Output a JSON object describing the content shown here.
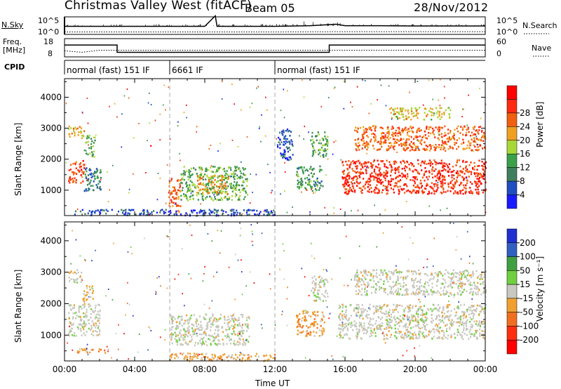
{
  "header": {
    "title": "Christmas Valley West (fitACF)",
    "beam": "Beam 05",
    "date": "28/Nov/2012"
  },
  "colors": {
    "power_scale": [
      "#1a1aff",
      "#1f4fc0",
      "#3f7f5f",
      "#3aa04a",
      "#a8d838",
      "#f0a020",
      "#f06010",
      "#ff2a10",
      "#ff0000"
    ],
    "velocity_scale": [
      "#2030d0",
      "#3060c0",
      "#40a040",
      "#70d040",
      "#c8c8c0",
      "#f0a030",
      "#f07020",
      "#ff3010",
      "#ff0000"
    ],
    "gray_scatter": "#c8c8c0"
  },
  "chart_data": [
    {
      "type": "line",
      "name": "noise-panel",
      "y_left_label": "N.Sky",
      "y_left_ticks": [
        "10^5",
        "10^0"
      ],
      "y_right_ticks": [
        "10^5",
        "10^0"
      ],
      "legend": "N.Search",
      "series": [
        {
          "name": "N.Sky",
          "x": [
            0,
            2,
            4,
            6,
            8,
            8.6,
            8.7,
            10,
            12,
            14,
            15.5,
            16,
            18,
            20,
            22,
            24
          ],
          "y": [
            200,
            200,
            200,
            200,
            200,
            200000,
            200,
            200,
            200,
            300,
            800,
            300,
            300,
            250,
            250,
            250
          ]
        },
        {
          "name": "N.Search",
          "x": [
            0,
            4,
            8,
            12,
            16,
            20,
            24
          ],
          "y": [
            5,
            5,
            5,
            5,
            6,
            6,
            6
          ]
        }
      ]
    },
    {
      "type": "line",
      "name": "frequency-panel",
      "y_left_label": "Freq.\n[MHz]",
      "y_left_ticks": [
        "18",
        "8"
      ],
      "y_right_ticks": [
        "60",
        "0"
      ],
      "legend": "Nave",
      "series": [
        {
          "name": "Freq",
          "x": [
            0,
            3,
            3,
            15.1,
            15.1,
            24
          ],
          "y": [
            14.5,
            14.5,
            10.5,
            10.5,
            14.5,
            14.5
          ]
        },
        {
          "name": "Nave",
          "x": [
            0,
            1,
            2,
            24
          ],
          "y": [
            20,
            15,
            22,
            22
          ]
        }
      ]
    },
    {
      "type": "table",
      "name": "cpid-strip",
      "label": "CPID",
      "segments": [
        {
          "start": 0,
          "end": 6,
          "text": "normal (fast) 151 IF"
        },
        {
          "start": 6,
          "end": 12,
          "text": "6661 IF"
        },
        {
          "start": 12,
          "end": 24,
          "text": "normal (fast) 151 IF"
        }
      ]
    },
    {
      "type": "heatmap",
      "name": "power-panel",
      "ylabel": "Slant Range [km]",
      "xlim": [
        0,
        24
      ],
      "ylim": [
        180,
        4600
      ],
      "y_ticks": [
        1000,
        2000,
        3000,
        4000
      ],
      "colorbar": {
        "label": "Power [dB]",
        "ticks": [
          4,
          8,
          12,
          16,
          20,
          24,
          28
        ],
        "range": [
          0,
          32
        ]
      },
      "regions": [
        {
          "t0": 0.2,
          "t1": 1.1,
          "r0": 1250,
          "r1": 2000,
          "level": 28
        },
        {
          "t0": 0.2,
          "t1": 1.1,
          "r0": 2700,
          "r1": 3100,
          "level": 22
        },
        {
          "t0": 1.1,
          "t1": 1.7,
          "r0": 2100,
          "r1": 2800,
          "level": 14
        },
        {
          "t0": 1.1,
          "t1": 2.1,
          "r0": 1000,
          "r1": 1800,
          "level": 10
        },
        {
          "t0": 5.9,
          "t1": 6.6,
          "r0": 300,
          "r1": 1400,
          "level": 26
        },
        {
          "t0": 6.6,
          "t1": 10.4,
          "r0": 700,
          "r1": 1800,
          "level": 15
        },
        {
          "t0": 7.5,
          "t1": 9.4,
          "r0": 900,
          "r1": 1500,
          "level": 22
        },
        {
          "t0": 0.5,
          "t1": 12,
          "r0": 200,
          "r1": 400,
          "level": 6
        },
        {
          "t0": 12.1,
          "t1": 13,
          "r0": 2000,
          "r1": 3000,
          "level": 6
        },
        {
          "t0": 13.2,
          "t1": 14.7,
          "r0": 1000,
          "r1": 1800,
          "level": 12
        },
        {
          "t0": 14,
          "t1": 15,
          "r0": 2100,
          "r1": 2900,
          "level": 14
        },
        {
          "t0": 15.8,
          "t1": 24,
          "r0": 900,
          "r1": 2000,
          "level": 30
        },
        {
          "t0": 16.5,
          "t1": 24,
          "r0": 2300,
          "r1": 3100,
          "level": 26
        },
        {
          "t0": 18.5,
          "t1": 22,
          "r0": 3300,
          "r1": 3700,
          "level": 20
        }
      ]
    },
    {
      "type": "heatmap",
      "name": "velocity-panel",
      "ylabel": "Slant Range [km]",
      "xlabel": "Time UT",
      "xlim": [
        0,
        24
      ],
      "ylim": [
        180,
        4600
      ],
      "y_ticks": [
        1000,
        2000,
        3000,
        4000
      ],
      "x_ticks": [
        "00:00",
        "04:00",
        "08:00",
        "12:00",
        "16:00",
        "20:00",
        "00:00"
      ],
      "colorbar": {
        "label": "Velocity [m s⁻¹]",
        "ticks": [
          200,
          100,
          50,
          15,
          -15,
          -50,
          -100,
          -200
        ],
        "range": [
          -250,
          250
        ]
      },
      "regions": [
        {
          "t0": 0.2,
          "t1": 2.0,
          "r0": 1000,
          "r1": 2000,
          "level": -5
        },
        {
          "t0": 0.2,
          "t1": 1.0,
          "r0": 2700,
          "r1": 3100,
          "level": -5
        },
        {
          "t0": 1.0,
          "t1": 1.6,
          "r0": 2000,
          "r1": 2600,
          "level": -40
        },
        {
          "t0": 0.5,
          "t1": 2.5,
          "r0": 450,
          "r1": 600,
          "level": -60
        },
        {
          "t0": 6.0,
          "t1": 10.5,
          "r0": 700,
          "r1": 1700,
          "level": -5
        },
        {
          "t0": 6.0,
          "t1": 12.0,
          "r0": 200,
          "r1": 450,
          "level": -50
        },
        {
          "t0": 13.2,
          "t1": 14.8,
          "r0": 1000,
          "r1": 1800,
          "level": -60
        },
        {
          "t0": 14.0,
          "t1": 15.0,
          "r0": 2100,
          "r1": 2900,
          "level": -5
        },
        {
          "t0": 15.6,
          "t1": 24.0,
          "r0": 900,
          "r1": 2000,
          "level": -5
        },
        {
          "t0": 16.5,
          "t1": 24.0,
          "r0": 2300,
          "r1": 3100,
          "level": -5
        }
      ]
    }
  ]
}
